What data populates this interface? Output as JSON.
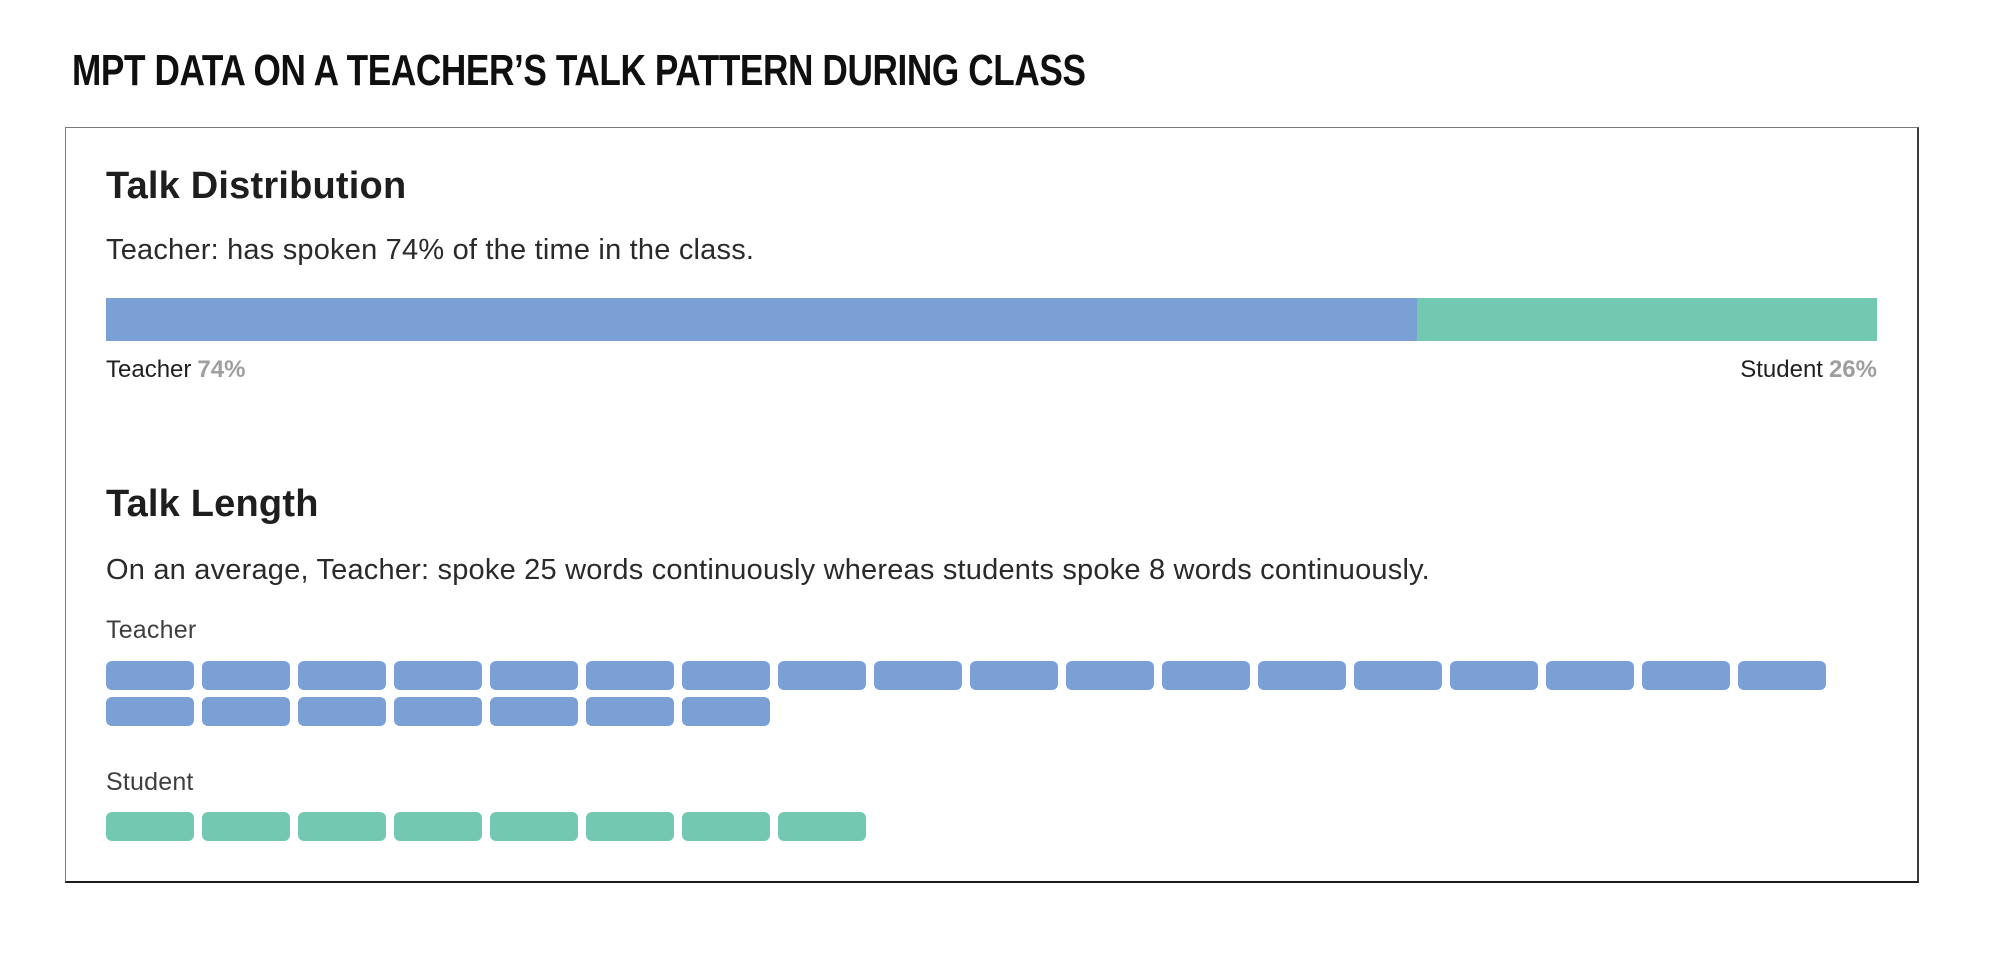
{
  "page": {
    "title": "MPT DATA ON A TEACHER’S TALK PATTERN DURING CLASS"
  },
  "colors": {
    "teacher": "#7aa0d5",
    "student": "#73c8b2",
    "percent_value": "#9e9e9e"
  },
  "talk_distribution": {
    "heading": "Talk Distribution",
    "description": "Teacher: has spoken 74% of the time in the class.",
    "teacher": {
      "label": "Teacher",
      "value": "74%",
      "pct": 74
    },
    "student": {
      "label": "Student",
      "value": "26%",
      "pct": 26
    }
  },
  "talk_length": {
    "heading": "Talk Length",
    "description": "On an average, Teacher: spoke 25 words continuously whereas students spoke 8 words continuously.",
    "teacher": {
      "label": "Teacher",
      "words": 25
    },
    "student": {
      "label": "Student",
      "words": 8
    }
  },
  "chart_data": [
    {
      "type": "bar",
      "subtype": "horizontal-stacked-percentage",
      "title": "Talk Distribution",
      "categories": [
        "Teacher",
        "Student"
      ],
      "values": [
        74,
        26
      ],
      "units": "%",
      "value_labels": [
        "Teacher 74%",
        "Student 26%"
      ],
      "colors": [
        "#7aa0d5",
        "#73c8b2"
      ],
      "annotation": "Teacher: has spoken 74% of the time in the class.",
      "legend_position": "below-bar, Teacher left / Student right",
      "axis": "none",
      "grid": false
    },
    {
      "type": "bar",
      "subtype": "unit-block-waffle",
      "title": "Talk Length",
      "categories": [
        "Teacher",
        "Student"
      ],
      "values": [
        25,
        8
      ],
      "units": "words",
      "colors": [
        "#7aa0d5",
        "#73c8b2"
      ],
      "annotation": "On an average, Teacher: spoke 25 words continuously whereas students spoke 8 words continuously.",
      "layout": "one rounded block per word, wrapping at 18 blocks per row",
      "axis": "none",
      "grid": false
    }
  ]
}
